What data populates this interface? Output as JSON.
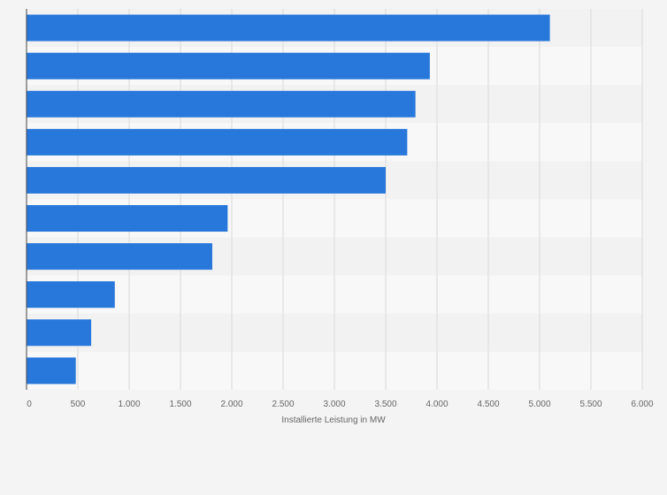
{
  "chart_data": {
    "type": "bar",
    "orientation": "horizontal",
    "categories": [
      "",
      "",
      "",
      "",
      "",
      "",
      "",
      "",
      "",
      ""
    ],
    "values": [
      5100,
      3930,
      3790,
      3710,
      3500,
      1960,
      1810,
      860,
      630,
      480
    ],
    "xlabel": "Installierte Leistung in MW",
    "ylabel": "",
    "xlim": [
      0,
      6000
    ],
    "x_ticks": [
      0,
      500,
      1000,
      1500,
      2000,
      2500,
      3000,
      3500,
      4000,
      4500,
      5000,
      5500,
      6000
    ],
    "x_tick_labels": [
      "0",
      "500",
      "1.000",
      "1.500",
      "2.000",
      "2.500",
      "3.000",
      "3.500",
      "4.000",
      "4.500",
      "5.000",
      "5.500",
      "6.000"
    ],
    "grid": true,
    "legend": "none",
    "colors": {
      "bar": "#2878dc",
      "band_dark": "#f2f2f2",
      "band_light": "#f8f8f8",
      "grid": "#d9d9d9",
      "axis": "#444444",
      "text": "#666666"
    }
  }
}
